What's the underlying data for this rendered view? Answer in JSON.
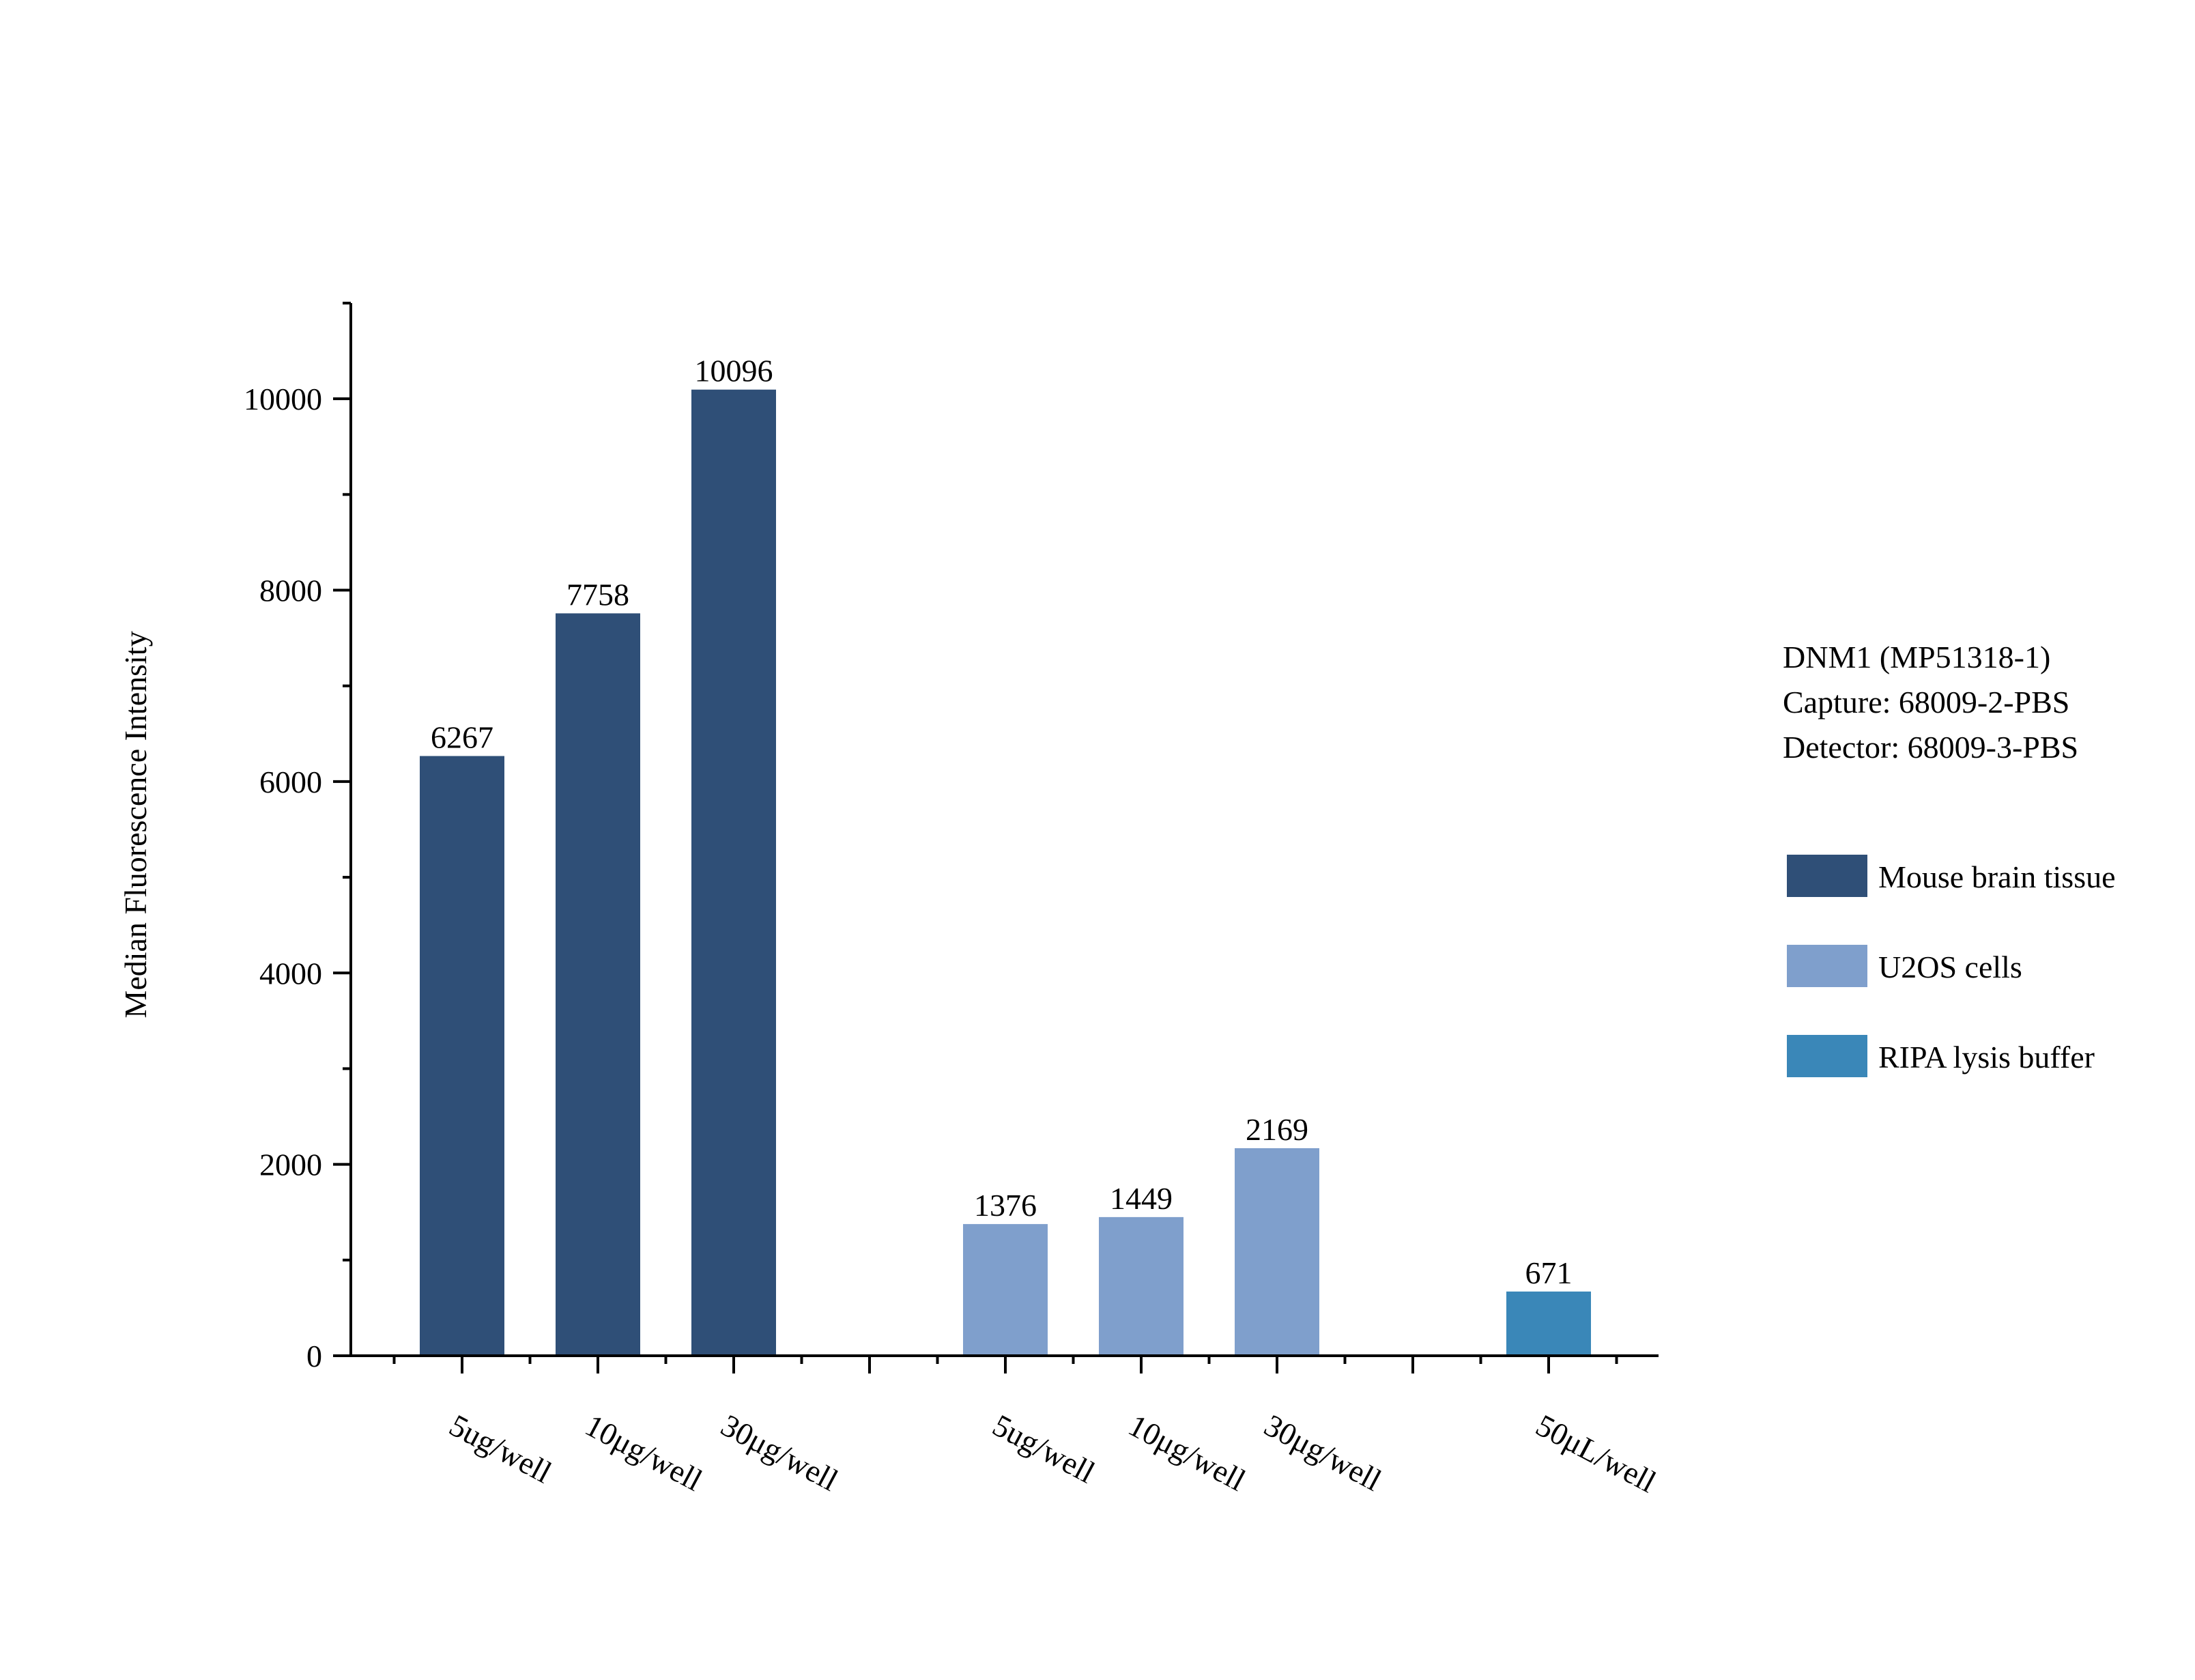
{
  "chart_data": {
    "type": "bar",
    "title": "",
    "xlabel": "",
    "ylabel": "Median Fluorescence Intensity",
    "ylim": [
      0,
      11000
    ],
    "yticks": [
      0,
      2000,
      4000,
      6000,
      8000,
      10000
    ],
    "grid": false,
    "legend_position": "right",
    "info_lines": [
      "DNM1 (MP51318-1)",
      "Capture: 68009-2-PBS",
      "Detector: 68009-3-PBS"
    ],
    "series": [
      {
        "name": "Mouse brain tissue",
        "color": "#2F4F77",
        "categories": [
          "5ug/well",
          "10μg/well",
          "30μg/well"
        ],
        "values": [
          6267,
          7758,
          10096
        ],
        "value_labels": [
          "6267",
          "7758",
          "10096"
        ]
      },
      {
        "name": "U2OS cells",
        "color": "#7F9FCC",
        "categories": [
          "5ug/well",
          "10μg/well",
          "30μg/well"
        ],
        "values": [
          1376,
          1449,
          2169
        ],
        "value_labels": [
          "1376",
          "1449",
          "2169"
        ]
      },
      {
        "name": "RIPA lysis buffer",
        "color": "#3A87B8",
        "categories": [
          "50μL/well"
        ],
        "values": [
          671
        ],
        "value_labels": [
          "671"
        ]
      }
    ]
  }
}
